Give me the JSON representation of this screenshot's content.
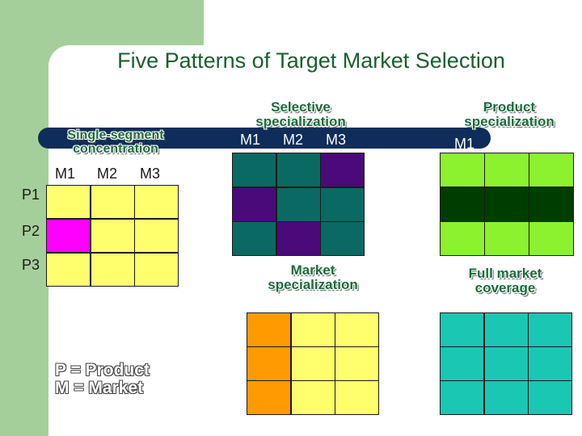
{
  "title": "Five Patterns of Target Market Selection",
  "markets": [
    "M1",
    "M2",
    "M3"
  ],
  "products": [
    "P1",
    "P2",
    "P3"
  ],
  "market_header_clipped": "M1",
  "patterns": {
    "single": {
      "label": "Single-segment concentration",
      "cells": [
        "#ffff6e",
        "#ffff6e",
        "#ffff6e",
        "#ff00ff",
        "#ffff6e",
        "#ffff6e",
        "#ffff6e",
        "#ffff6e",
        "#ffff6e"
      ]
    },
    "selective": {
      "label": "Selective specialization",
      "cells": [
        "#0a6a63",
        "#0a6a63",
        "#4b0a7a",
        "#4b0a7a",
        "#0a6a63",
        "#0a6a63",
        "#0a6a63",
        "#4b0a7a",
        "#0a6a63"
      ]
    },
    "product": {
      "label": "Product specialization",
      "cells": [
        "#8cf22e",
        "#8cf22e",
        "#8cf22e",
        "#003d00",
        "#003d00",
        "#003d00",
        "#8cf22e",
        "#8cf22e",
        "#8cf22e"
      ]
    },
    "market": {
      "label": "Market specialization",
      "cells": [
        "#ff9a00",
        "#ffff6e",
        "#ffff6e",
        "#ff9a00",
        "#ffff6e",
        "#ffff6e",
        "#ff9a00",
        "#ffff6e",
        "#ffff6e"
      ]
    },
    "full": {
      "label": "Full market coverage",
      "cells": [
        "#19c7b3",
        "#19c7b3",
        "#19c7b3",
        "#19c7b3",
        "#19c7b3",
        "#19c7b3",
        "#19c7b3",
        "#19c7b3",
        "#19c7b3"
      ]
    }
  },
  "legend": {
    "line1": "P = Product",
    "line2": "M = Market"
  }
}
